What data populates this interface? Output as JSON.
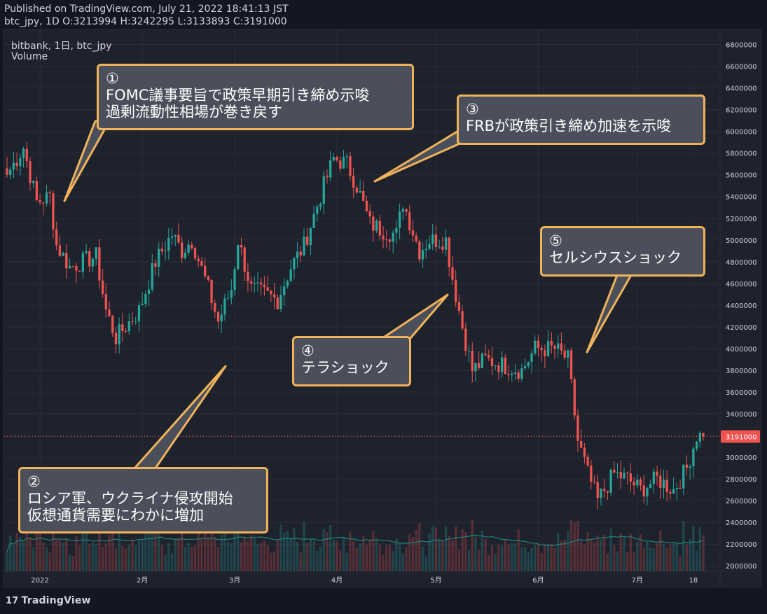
{
  "header": {
    "published": "Published on TradingView.com, July 21, 2022 18:41:13 JST",
    "ohlc": "btc_jpy, 1D O:3213994 H:3242295 L:3133893 C:3191000"
  },
  "legend": {
    "symbol": "bitbank, 1日, btc_jpy",
    "volume": "Volume"
  },
  "footer": {
    "logo_mark": "17",
    "logo_text": "TradingView"
  },
  "colors": {
    "background": "#1e222d",
    "up": "#26a69a",
    "down": "#ef5350",
    "callout_border": "#f0b35a",
    "callout_fill": "#4a4f5b",
    "price_line": "#ef5350",
    "volume_ma": "#22837a"
  },
  "annotations": [
    {
      "id": "ann1",
      "lines": [
        "①",
        "FOMC議事要旨で政策早期引き締め示唆",
        "過剰流動性相場が巻き戻す"
      ]
    },
    {
      "id": "ann2",
      "lines": [
        "②",
        "ロシア軍、ウクライナ侵攻開始",
        "仮想通貨需要にわかに増加"
      ]
    },
    {
      "id": "ann3",
      "lines": [
        "③",
        "FRBが政策引き締め加速を示唆"
      ]
    },
    {
      "id": "ann4",
      "lines": [
        "④",
        "テラショック"
      ]
    },
    {
      "id": "ann5",
      "lines": [
        "⑤",
        "セルシウスショック"
      ]
    }
  ],
  "chart_data": {
    "type": "candlestick",
    "symbol": "btc_jpy",
    "timeframe": "1D",
    "ylim": [
      1950000,
      6900000
    ],
    "y_ticks": [
      2000000,
      2200000,
      2400000,
      2600000,
      2800000,
      3000000,
      3200000,
      3400000,
      3600000,
      3800000,
      4000000,
      4200000,
      4400000,
      4600000,
      4800000,
      5000000,
      5200000,
      5400000,
      5600000,
      5800000,
      6000000,
      6200000,
      6400000,
      6600000,
      6800000
    ],
    "y_tick_labels": [
      "2000000",
      "2200000",
      "2400000",
      "2600000",
      "2800000",
      "3000000",
      "3200000",
      "3400000",
      "3600000",
      "3800000",
      "4000000",
      "4200000",
      "4400000",
      "4600000",
      "4800000",
      "5000000",
      "5200000",
      "5400000",
      "5600000",
      "5800000",
      "6000000",
      "6200000",
      "6400000",
      "6600000",
      "6800000"
    ],
    "x_ticks": [
      {
        "date": "2022-01-01",
        "label": "2022"
      },
      {
        "date": "2022-02-01",
        "label": "2月"
      },
      {
        "date": "2022-03-01",
        "label": "3月"
      },
      {
        "date": "2022-04-01",
        "label": "4月"
      },
      {
        "date": "2022-05-01",
        "label": "5月"
      },
      {
        "date": "2022-06-01",
        "label": "6月"
      },
      {
        "date": "2022-07-01",
        "label": "7月"
      },
      {
        "date": "2022-07-18",
        "label": "18"
      }
    ],
    "last_price": 3191000,
    "last_price_label": "3191000",
    "close_series": {
      "start_date": "2021-12-22",
      "end_date": "2022-07-21",
      "anchors": [
        [
          "2021-12-22",
          5600000
        ],
        [
          "2021-12-27",
          5850000
        ],
        [
          "2021-12-31",
          5350000
        ],
        [
          "2022-01-04",
          5400000
        ],
        [
          "2022-01-06",
          4950000
        ],
        [
          "2022-01-10",
          4750000
        ],
        [
          "2022-01-18",
          4850000
        ],
        [
          "2022-01-21",
          4350000
        ],
        [
          "2022-01-24",
          4100000
        ],
        [
          "2022-01-31",
          4350000
        ],
        [
          "2022-02-05",
          4800000
        ],
        [
          "2022-02-10",
          5050000
        ],
        [
          "2022-02-13",
          4900000
        ],
        [
          "2022-02-16",
          5000000
        ],
        [
          "2022-02-21",
          4550000
        ],
        [
          "2022-02-24",
          4250000
        ],
        [
          "2022-02-28",
          4550000
        ],
        [
          "2022-03-02",
          5000000
        ],
        [
          "2022-03-06",
          4550000
        ],
        [
          "2022-03-10",
          4500000
        ],
        [
          "2022-03-14",
          4450000
        ],
        [
          "2022-03-18",
          4750000
        ],
        [
          "2022-03-22",
          4950000
        ],
        [
          "2022-03-28",
          5500000
        ],
        [
          "2022-03-31",
          5750000
        ],
        [
          "2022-04-04",
          5700000
        ],
        [
          "2022-04-07",
          5500000
        ],
        [
          "2022-04-11",
          5150000
        ],
        [
          "2022-04-14",
          5100000
        ],
        [
          "2022-04-19",
          5050000
        ],
        [
          "2022-04-21",
          5350000
        ],
        [
          "2022-04-26",
          4900000
        ],
        [
          "2022-04-29",
          5000000
        ],
        [
          "2022-05-04",
          5000000
        ],
        [
          "2022-05-06",
          4650000
        ],
        [
          "2022-05-09",
          4200000
        ],
        [
          "2022-05-12",
          3800000
        ],
        [
          "2022-05-16",
          3900000
        ],
        [
          "2022-05-21",
          3850000
        ],
        [
          "2022-05-27",
          3800000
        ],
        [
          "2022-05-31",
          4000000
        ],
        [
          "2022-06-06",
          4000000
        ],
        [
          "2022-06-10",
          3900000
        ],
        [
          "2022-06-13",
          3150000
        ],
        [
          "2022-06-16",
          2850000
        ],
        [
          "2022-06-19",
          2600000
        ],
        [
          "2022-06-24",
          2850000
        ],
        [
          "2022-06-28",
          2800000
        ],
        [
          "2022-07-02",
          2700000
        ],
        [
          "2022-07-07",
          2800000
        ],
        [
          "2022-07-12",
          2700000
        ],
        [
          "2022-07-16",
          2900000
        ],
        [
          "2022-07-19",
          3200000
        ],
        [
          "2022-07-21",
          3191000
        ]
      ]
    }
  }
}
